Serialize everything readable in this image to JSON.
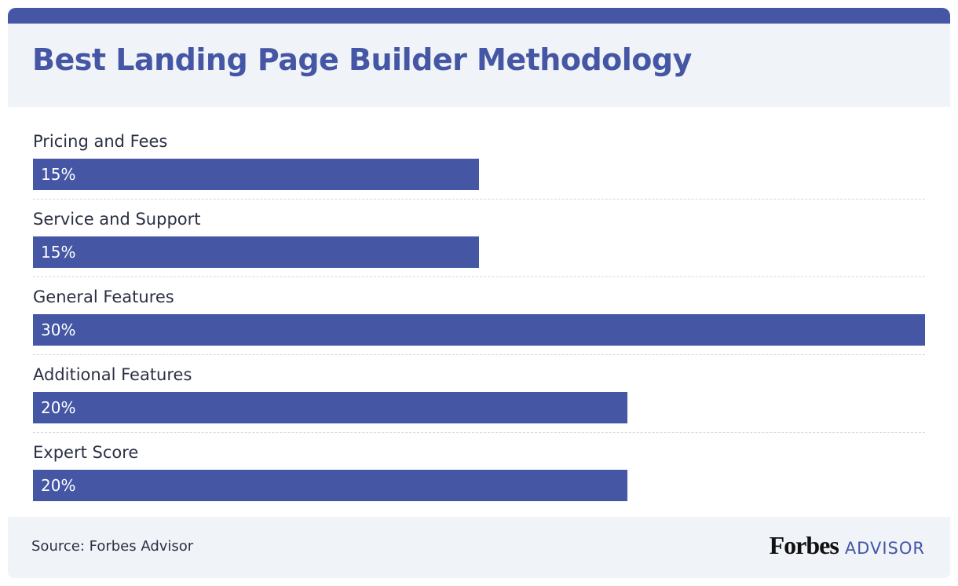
{
  "title": "Best Landing Page Builder Methodology",
  "footer": {
    "source": "Source: Forbes Advisor",
    "brand_name": "Forbes",
    "brand_suffix": "ADVISOR"
  },
  "colors": {
    "accent": "#4456a4",
    "header_background": "#f0f3f8",
    "text": "#2b3044"
  },
  "chart_data": {
    "type": "bar",
    "orientation": "horizontal",
    "title": "Best Landing Page Builder Methodology",
    "categories": [
      "Pricing and Fees",
      "Service and Support",
      "General Features",
      "Additional Features",
      "Expert Score"
    ],
    "values": [
      15,
      15,
      30,
      20,
      20
    ],
    "value_labels": [
      "15%",
      "15%",
      "30%",
      "20%",
      "20%"
    ],
    "unit": "%",
    "xlim": [
      0,
      30
    ],
    "grid": false,
    "legend": "none"
  }
}
